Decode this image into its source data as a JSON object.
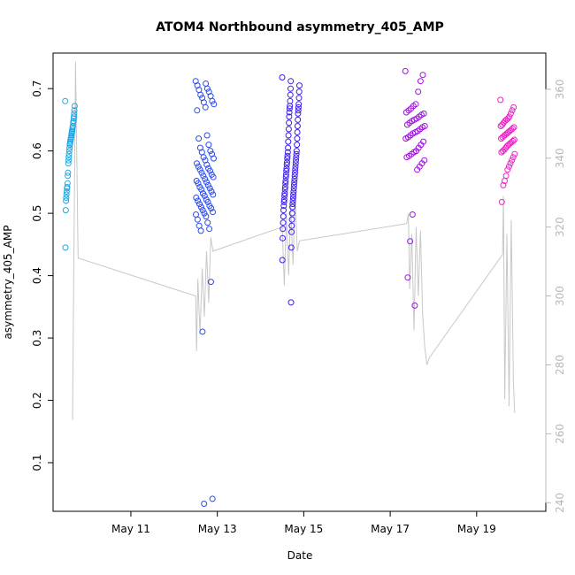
{
  "chart_data": {
    "type": "scatter",
    "title": "ATOM4 Northbound asymmetry_405_AMP",
    "xlabel": "Date",
    "ylabel": "asymmetry_405_AMP",
    "x_unit": "days since May 10 00:00",
    "xlim": [
      9.2,
      20.6
    ],
    "ylim": [
      0.022,
      0.757
    ],
    "y2lim": [
      237.5,
      370.5
    ],
    "x_ticks": [
      {
        "value": 11,
        "label": "May 11"
      },
      {
        "value": 13,
        "label": "May 13"
      },
      {
        "value": 15,
        "label": "May 15"
      },
      {
        "value": 17,
        "label": "May 17"
      },
      {
        "value": 19,
        "label": "May 19"
      }
    ],
    "y_ticks": [
      0.1,
      0.2,
      0.3,
      0.4,
      0.5,
      0.6,
      0.7
    ],
    "y2_ticks": [
      240,
      260,
      280,
      300,
      320,
      340,
      360
    ],
    "point_color_gradient": [
      "#1ea8e8",
      "#2a3cf0",
      "#8a10e8",
      "#f020c0"
    ],
    "line_color": "#c8c8c8",
    "clusters": [
      {
        "x_start": 9.48,
        "x_end": 9.7,
        "color": "#1ea8e8",
        "points": [
          0.68,
          0.672,
          0.665,
          0.66,
          0.655,
          0.652,
          0.648,
          0.645,
          0.64,
          0.638,
          0.635,
          0.632,
          0.63,
          0.628,
          0.625,
          0.622,
          0.62,
          0.618,
          0.615,
          0.612,
          0.61,
          0.605,
          0.6,
          0.595,
          0.59,
          0.585,
          0.58,
          0.565,
          0.56,
          0.548,
          0.542,
          0.54,
          0.535,
          0.53,
          0.525,
          0.52,
          0.505,
          0.445
        ]
      },
      {
        "x_start": 12.5,
        "x_end": 12.92,
        "color": "#2a4cf0",
        "points": [
          0.712,
          0.708,
          0.705,
          0.7,
          0.698,
          0.695,
          0.69,
          0.688,
          0.685,
          0.68,
          0.678,
          0.675,
          0.67,
          0.665,
          0.625,
          0.62,
          0.61,
          0.605,
          0.6,
          0.598,
          0.595,
          0.59,
          0.588,
          0.585,
          0.58,
          0.578,
          0.575,
          0.572,
          0.57,
          0.568,
          0.565,
          0.562,
          0.56,
          0.558,
          0.555,
          0.552,
          0.55,
          0.548,
          0.545,
          0.542,
          0.54,
          0.538,
          0.535,
          0.532,
          0.53,
          0.528,
          0.525,
          0.522,
          0.52,
          0.518,
          0.515,
          0.512,
          0.51,
          0.508,
          0.505,
          0.502,
          0.5,
          0.498,
          0.495,
          0.49,
          0.485,
          0.48,
          0.475,
          0.472,
          0.39,
          0.31,
          0.042,
          0.034
        ]
      },
      {
        "x_start": 14.5,
        "x_end": 14.9,
        "color": "#3a1ef0",
        "points": [
          0.718,
          0.712,
          0.705,
          0.7,
          0.695,
          0.69,
          0.685,
          0.68,
          0.675,
          0.672,
          0.67,
          0.668,
          0.665,
          0.662,
          0.66,
          0.655,
          0.65,
          0.645,
          0.64,
          0.635,
          0.63,
          0.625,
          0.62,
          0.615,
          0.61,
          0.605,
          0.6,
          0.598,
          0.595,
          0.592,
          0.59,
          0.588,
          0.585,
          0.582,
          0.58,
          0.578,
          0.575,
          0.572,
          0.57,
          0.568,
          0.565,
          0.562,
          0.56,
          0.558,
          0.555,
          0.552,
          0.55,
          0.548,
          0.545,
          0.542,
          0.54,
          0.538,
          0.535,
          0.532,
          0.53,
          0.528,
          0.525,
          0.522,
          0.52,
          0.518,
          0.515,
          0.512,
          0.51,
          0.505,
          0.5,
          0.495,
          0.49,
          0.485,
          0.48,
          0.475,
          0.47,
          0.46,
          0.445,
          0.425,
          0.357
        ]
      },
      {
        "x_start": 17.35,
        "x_end": 17.8,
        "color": "#a010e0",
        "points": [
          0.728,
          0.722,
          0.712,
          0.695,
          0.675,
          0.672,
          0.668,
          0.665,
          0.662,
          0.66,
          0.658,
          0.655,
          0.652,
          0.65,
          0.648,
          0.645,
          0.642,
          0.64,
          0.638,
          0.635,
          0.632,
          0.63,
          0.628,
          0.625,
          0.622,
          0.62,
          0.615,
          0.61,
          0.605,
          0.6,
          0.598,
          0.595,
          0.592,
          0.59,
          0.585,
          0.58,
          0.575,
          0.57,
          0.352,
          0.498,
          0.455,
          0.397
        ]
      },
      {
        "x_start": 19.55,
        "x_end": 19.88,
        "color": "#f020c8",
        "points": [
          0.682,
          0.67,
          0.665,
          0.66,
          0.655,
          0.652,
          0.65,
          0.648,
          0.645,
          0.642,
          0.64,
          0.638,
          0.636,
          0.634,
          0.632,
          0.63,
          0.628,
          0.626,
          0.624,
          0.622,
          0.62,
          0.618,
          0.616,
          0.614,
          0.612,
          0.61,
          0.608,
          0.605,
          0.602,
          0.6,
          0.598,
          0.595,
          0.59,
          0.585,
          0.58,
          0.575,
          0.57,
          0.56,
          0.552,
          0.545,
          0.518
        ]
      }
    ],
    "gray_line": [
      [
        9.65,
        264
      ],
      [
        9.72,
        368
      ],
      [
        9.78,
        311
      ],
      [
        12.5,
        300
      ],
      [
        12.52,
        284
      ],
      [
        12.55,
        305
      ],
      [
        12.6,
        289
      ],
      [
        12.65,
        308
      ],
      [
        12.7,
        294
      ],
      [
        12.75,
        313
      ],
      [
        12.8,
        298
      ],
      [
        12.85,
        317
      ],
      [
        12.9,
        313
      ],
      [
        14.5,
        320
      ],
      [
        14.55,
        303
      ],
      [
        14.6,
        324
      ],
      [
        14.65,
        306
      ],
      [
        14.7,
        326
      ],
      [
        14.75,
        309
      ],
      [
        14.8,
        329
      ],
      [
        14.85,
        313
      ],
      [
        14.9,
        316
      ],
      [
        17.38,
        321
      ],
      [
        17.42,
        324
      ],
      [
        17.45,
        302
      ],
      [
        17.5,
        318
      ],
      [
        17.55,
        290
      ],
      [
        17.6,
        320
      ],
      [
        17.65,
        300
      ],
      [
        17.7,
        319
      ],
      [
        17.75,
        295
      ],
      [
        17.8,
        285
      ],
      [
        17.85,
        280
      ],
      [
        17.9,
        282
      ],
      [
        19.6,
        312
      ],
      [
        19.62,
        329
      ],
      [
        19.65,
        270
      ],
      [
        19.7,
        318
      ],
      [
        19.75,
        268
      ],
      [
        19.8,
        322
      ],
      [
        19.85,
        275
      ],
      [
        19.88,
        266
      ]
    ]
  }
}
